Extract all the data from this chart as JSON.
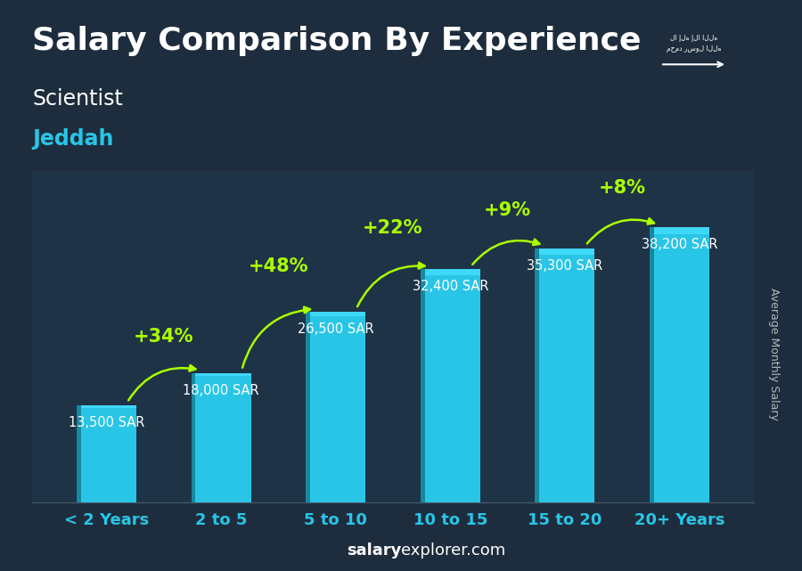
{
  "title": "Salary Comparison By Experience",
  "subtitle1": "Scientist",
  "subtitle2": "Jeddah",
  "ylabel": "Average Monthly Salary",
  "categories": [
    "< 2 Years",
    "2 to 5",
    "5 to 10",
    "10 to 15",
    "15 to 20",
    "20+ Years"
  ],
  "values": [
    13500,
    18000,
    26500,
    32400,
    35300,
    38200
  ],
  "value_labels": [
    "13,500 SAR",
    "18,000 SAR",
    "26,500 SAR",
    "32,400 SAR",
    "35,300 SAR",
    "38,200 SAR"
  ],
  "pct_labels": [
    "+34%",
    "+48%",
    "+22%",
    "+9%",
    "+8%"
  ],
  "bar_color_light": "#29C5E6",
  "bar_color_dark": "#1A9AB5",
  "bar_color_left": "#1688A0",
  "background_color": "#1e2d3d",
  "title_color": "#ffffff",
  "subtitle1_color": "#ffffff",
  "subtitle2_color": "#29C5E6",
  "value_label_color": "#ffffff",
  "pct_label_color": "#aaff00",
  "arrow_color": "#aaff00",
  "xlabel_color": "#29C5E6",
  "footer_bold_color": "#ffffff",
  "footer_normal_color": "#ffffff",
  "ylabel_color": "#cccccc",
  "title_fontsize": 26,
  "subtitle1_fontsize": 17,
  "subtitle2_fontsize": 17,
  "value_label_fontsize": 10.5,
  "pct_label_fontsize": 15,
  "cat_label_fontsize": 13,
  "footer_fontsize": 13,
  "ylim": [
    0,
    46000
  ],
  "pct_text_offsets": [
    3800,
    5000,
    4500,
    4000,
    4200
  ],
  "arrow_rad": [
    -0.35,
    -0.35,
    -0.35,
    -0.35,
    -0.35
  ]
}
